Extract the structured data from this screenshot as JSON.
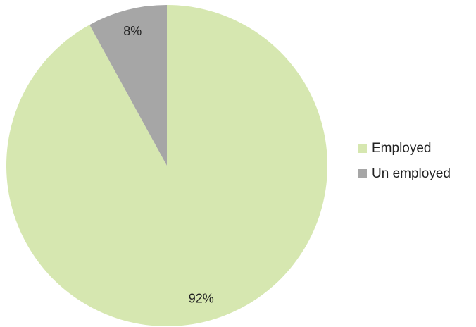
{
  "chart_data": {
    "type": "pie",
    "slices": [
      {
        "label": "Employed",
        "value": 92,
        "data_label": "92%",
        "color": "#d6e7b0"
      },
      {
        "label": "Un employed",
        "value": 8,
        "data_label": "8%",
        "color": "#a6a6a6"
      }
    ],
    "start": "12 o'clock",
    "direction": "clockwise",
    "legend": "right",
    "title": ""
  }
}
